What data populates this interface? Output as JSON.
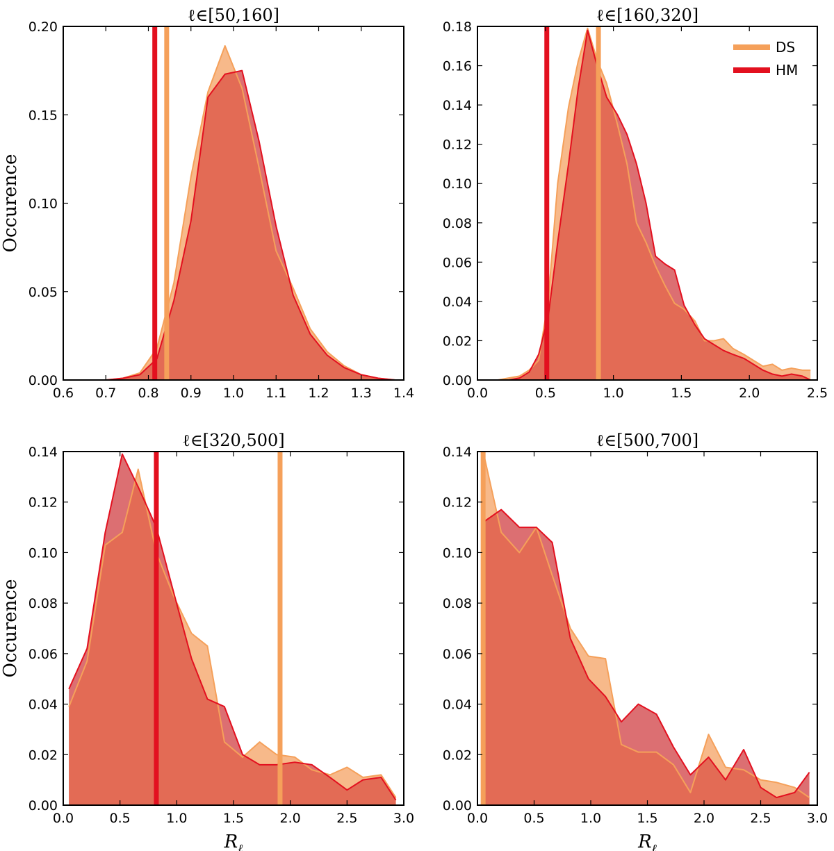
{
  "colors": {
    "DS": "#f5a05a",
    "HM": "#e3101f",
    "DS_fill": "#f7b98a",
    "HM_fill": "#dc6f72",
    "overlap_fill": "#e36b55"
  },
  "legend": {
    "items": [
      {
        "series": "DS",
        "label": "DS"
      },
      {
        "series": "HM",
        "label": "HM"
      }
    ],
    "placement": "top-right of panel 2"
  },
  "chart_data": [
    {
      "type": "area",
      "title": "ℓ∈[50,160]",
      "xlabel": "",
      "ylabel": "Occurence",
      "xlim": [
        0.6,
        1.4
      ],
      "ylim": [
        0,
        0.2
      ],
      "xticks": [
        "0.6",
        "0.7",
        "0.8",
        "0.9",
        "1.0",
        "1.1",
        "1.2",
        "1.3",
        "1.4"
      ],
      "yticks": [
        "0.00",
        "0.05",
        "0.10",
        "0.15",
        "0.20"
      ],
      "series": [
        {
          "name": "DS",
          "x": [
            0.7,
            0.74,
            0.78,
            0.82,
            0.86,
            0.9,
            0.94,
            0.98,
            1.02,
            1.06,
            1.1,
            1.14,
            1.18,
            1.22,
            1.26,
            1.3,
            1.34,
            1.38
          ],
          "y": [
            0.0,
            0.001,
            0.004,
            0.018,
            0.055,
            0.115,
            0.163,
            0.189,
            0.165,
            0.12,
            0.073,
            0.052,
            0.029,
            0.016,
            0.008,
            0.003,
            0.001,
            0.0
          ]
        },
        {
          "name": "HM",
          "x": [
            0.7,
            0.74,
            0.78,
            0.82,
            0.86,
            0.9,
            0.94,
            0.98,
            1.02,
            1.06,
            1.1,
            1.14,
            1.18,
            1.22,
            1.26,
            1.3,
            1.34,
            1.38
          ],
          "y": [
            0.0,
            0.001,
            0.003,
            0.012,
            0.045,
            0.09,
            0.16,
            0.173,
            0.175,
            0.135,
            0.087,
            0.048,
            0.026,
            0.014,
            0.007,
            0.003,
            0.001,
            0.0
          ]
        }
      ],
      "vlines": [
        {
          "series": "HM",
          "x": 0.815
        },
        {
          "series": "DS",
          "x": 0.843
        }
      ]
    },
    {
      "type": "area",
      "title": "ℓ∈[160,320]",
      "xlabel": "",
      "ylabel": "",
      "xlim": [
        0.0,
        2.5
      ],
      "ylim": [
        0,
        0.18
      ],
      "xticks": [
        "0.0",
        "0.5",
        "1.0",
        "1.5",
        "2.0",
        "2.5"
      ],
      "yticks": [
        "0.00",
        "0.02",
        "0.04",
        "0.06",
        "0.08",
        "0.10",
        "0.12",
        "0.14",
        "0.16",
        "0.18"
      ],
      "series": [
        {
          "name": "DS",
          "x": [
            0.15,
            0.23,
            0.31,
            0.38,
            0.45,
            0.52,
            0.59,
            0.67,
            0.74,
            0.81,
            0.88,
            0.95,
            1.03,
            1.1,
            1.17,
            1.24,
            1.31,
            1.38,
            1.45,
            1.52,
            1.6,
            1.67,
            1.74,
            1.81,
            1.88,
            1.96,
            2.03,
            2.1,
            2.17,
            2.24,
            2.31,
            2.39,
            2.45
          ],
          "y": [
            0.0,
            0.001,
            0.002,
            0.005,
            0.01,
            0.04,
            0.1,
            0.139,
            0.162,
            0.179,
            0.163,
            0.151,
            0.13,
            0.11,
            0.08,
            0.07,
            0.058,
            0.048,
            0.039,
            0.036,
            0.03,
            0.02,
            0.02,
            0.021,
            0.016,
            0.013,
            0.01,
            0.007,
            0.008,
            0.005,
            0.006,
            0.005,
            0.005
          ]
        },
        {
          "name": "HM",
          "x": [
            0.15,
            0.23,
            0.31,
            0.38,
            0.45,
            0.52,
            0.59,
            0.67,
            0.74,
            0.81,
            0.88,
            0.95,
            1.03,
            1.1,
            1.17,
            1.24,
            1.31,
            1.38,
            1.45,
            1.52,
            1.6,
            1.67,
            1.74,
            1.81,
            1.88,
            1.96,
            2.03,
            2.1,
            2.17,
            2.24,
            2.31,
            2.39,
            2.45
          ],
          "y": [
            0.0,
            0.0,
            0.001,
            0.004,
            0.013,
            0.032,
            0.07,
            0.11,
            0.148,
            0.178,
            0.16,
            0.144,
            0.135,
            0.125,
            0.11,
            0.09,
            0.063,
            0.059,
            0.056,
            0.038,
            0.028,
            0.021,
            0.018,
            0.015,
            0.013,
            0.011,
            0.008,
            0.005,
            0.003,
            0.002,
            0.003,
            0.002,
            0.0
          ]
        }
      ],
      "vlines": [
        {
          "series": "HM",
          "x": 0.51
        },
        {
          "series": "DS",
          "x": 0.89
        }
      ]
    },
    {
      "type": "area",
      "title": "ℓ∈[320,500]",
      "xlabel": "R_ℓ",
      "ylabel": "Occurence",
      "xlim": [
        0.0,
        3.0
      ],
      "ylim": [
        0,
        0.14
      ],
      "xticks": [
        "0.0",
        "0.5",
        "1.0",
        "1.5",
        "2.0",
        "2.5",
        "3.0"
      ],
      "yticks": [
        "0.00",
        "0.02",
        "0.04",
        "0.06",
        "0.08",
        "0.10",
        "0.12",
        "0.14"
      ],
      "series": [
        {
          "name": "DS",
          "x": [
            0.05,
            0.21,
            0.37,
            0.52,
            0.66,
            0.82,
            0.98,
            1.13,
            1.27,
            1.42,
            1.58,
            1.73,
            1.88,
            2.04,
            2.19,
            2.35,
            2.5,
            2.64,
            2.8,
            2.93
          ],
          "y": [
            0.039,
            0.057,
            0.103,
            0.108,
            0.133,
            0.1,
            0.082,
            0.068,
            0.063,
            0.025,
            0.019,
            0.025,
            0.02,
            0.019,
            0.014,
            0.012,
            0.015,
            0.011,
            0.012,
            0.003
          ]
        },
        {
          "name": "HM",
          "x": [
            0.05,
            0.21,
            0.37,
            0.52,
            0.66,
            0.82,
            0.98,
            1.13,
            1.27,
            1.42,
            1.58,
            1.73,
            1.88,
            2.04,
            2.19,
            2.35,
            2.5,
            2.64,
            2.8,
            2.93
          ],
          "y": [
            0.046,
            0.062,
            0.108,
            0.139,
            0.126,
            0.11,
            0.083,
            0.058,
            0.042,
            0.039,
            0.02,
            0.016,
            0.016,
            0.017,
            0.016,
            0.011,
            0.006,
            0.01,
            0.011,
            0.002
          ]
        }
      ],
      "vlines": [
        {
          "series": "HM",
          "x": 0.82
        },
        {
          "series": "DS",
          "x": 1.91
        }
      ]
    },
    {
      "type": "area",
      "title": "ℓ∈[500,700]",
      "xlabel": "R_ℓ",
      "ylabel": "",
      "xlim": [
        0.0,
        3.0
      ],
      "ylim": [
        0,
        0.14
      ],
      "xticks": [
        "0.0",
        "0.5",
        "1.0",
        "1.5",
        "2.0",
        "2.5",
        "3.0"
      ],
      "yticks": [
        "0.00",
        "0.02",
        "0.04",
        "0.06",
        "0.08",
        "0.10",
        "0.12",
        "0.14"
      ],
      "series": [
        {
          "name": "DS",
          "x": [
            0.05,
            0.21,
            0.37,
            0.52,
            0.66,
            0.82,
            0.98,
            1.13,
            1.27,
            1.42,
            1.58,
            1.73,
            1.88,
            2.04,
            2.19,
            2.35,
            2.5,
            2.64,
            2.8,
            2.93
          ],
          "y": [
            0.14,
            0.108,
            0.1,
            0.11,
            0.091,
            0.07,
            0.059,
            0.058,
            0.024,
            0.021,
            0.021,
            0.016,
            0.005,
            0.028,
            0.015,
            0.014,
            0.01,
            0.009,
            0.007,
            0.003
          ]
        },
        {
          "name": "HM",
          "x": [
            0.05,
            0.21,
            0.37,
            0.52,
            0.66,
            0.82,
            0.98,
            1.13,
            1.27,
            1.42,
            1.58,
            1.73,
            1.88,
            2.04,
            2.19,
            2.35,
            2.5,
            2.64,
            2.8,
            2.93
          ],
          "y": [
            0.112,
            0.117,
            0.11,
            0.11,
            0.104,
            0.066,
            0.05,
            0.043,
            0.033,
            0.04,
            0.036,
            0.023,
            0.012,
            0.019,
            0.01,
            0.022,
            0.007,
            0.003,
            0.005,
            0.013
          ]
        }
      ],
      "vlines": [
        {
          "series": "DS",
          "x": 0.05
        }
      ]
    }
  ]
}
